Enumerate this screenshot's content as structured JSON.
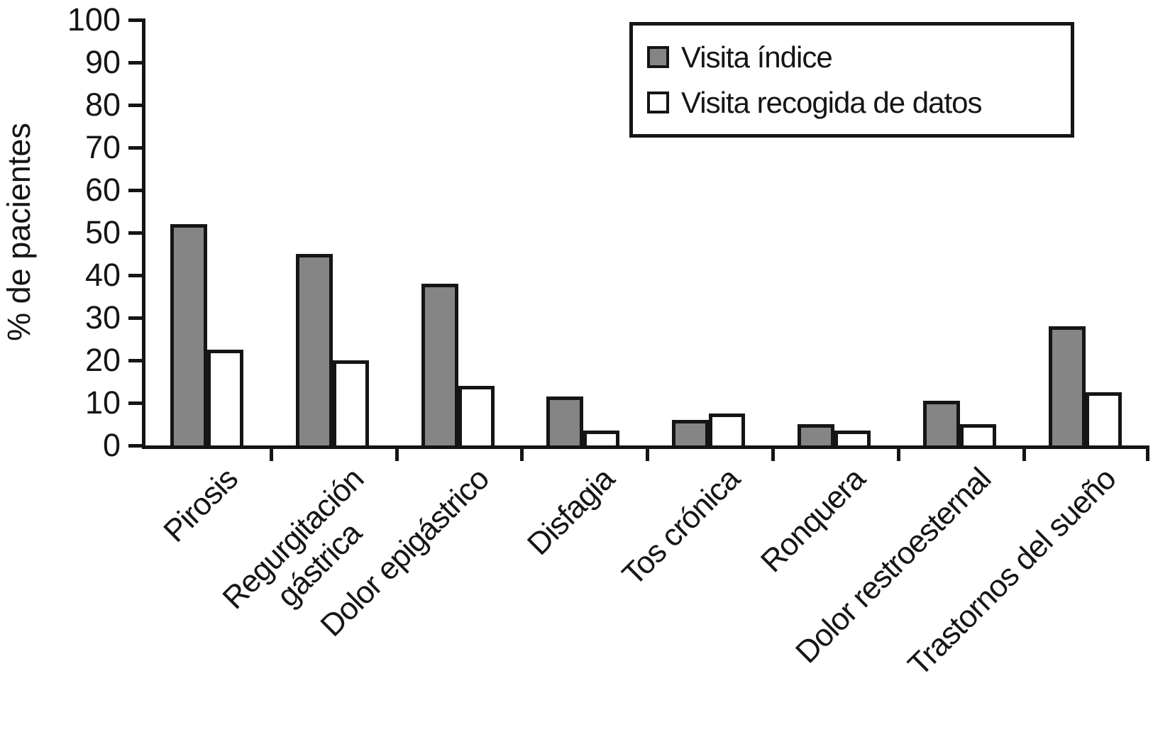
{
  "chart_data": {
    "type": "bar",
    "title": "",
    "xlabel": "",
    "ylabel": "% de pacientes",
    "ylim": [
      0,
      100
    ],
    "ytick_step": 10,
    "grid": false,
    "legend_position": "top-right",
    "bar_outline_color": "#151515",
    "categories": [
      "Pirosis",
      "Regurgitación\ngástrica",
      "Dolor epigástrico",
      "Disfagia",
      "Tos crónica",
      "Ronquera",
      "Dolor restroesternal",
      "Trastornos del sueño"
    ],
    "series": [
      {
        "name": "Visita índice",
        "color": "#858585",
        "values": [
          52,
          45,
          38,
          11.5,
          6,
          5,
          10.5,
          28
        ]
      },
      {
        "name": "Visita recogida de datos",
        "color": "#ffffff",
        "values": [
          22.5,
          20,
          14,
          3.5,
          7.5,
          3.5,
          5,
          12.5
        ]
      }
    ]
  }
}
